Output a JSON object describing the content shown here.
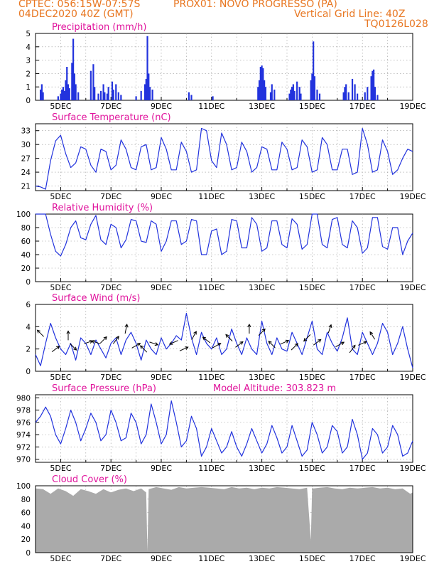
{
  "header": {
    "line1_left": "CPTEC:   056:15W-07:57S",
    "line1_right": "PROX01: NOVO PROGRESSO (PA)",
    "line2_left": "04DEC2020 40Z (GMT)",
    "line2_right": "Vertical Grid Line: 40Z",
    "line3_right": "TQ0126L028"
  },
  "colors": {
    "header": "#e87722",
    "title": "#e0139c",
    "series": "#2233dd",
    "cloud": "#aaaaaa"
  },
  "x_ticks": [
    "5DEC",
    "7DEC",
    "9DEC",
    "11DEC",
    "13DEC",
    "15DEC",
    "17DEC",
    "19DEC"
  ],
  "chart_data": [
    {
      "type": "bar",
      "title": "Precipitation (mm/h)",
      "ylim": [
        0,
        5
      ],
      "yticks": [
        0,
        1,
        2,
        3,
        4,
        5
      ],
      "points": [
        [
          0.2,
          0.8
        ],
        [
          0.25,
          1.2
        ],
        [
          0.3,
          0.6
        ],
        [
          0.9,
          0.3
        ],
        [
          1.0,
          0.5
        ],
        [
          1.05,
          0.8
        ],
        [
          1.1,
          1.0
        ],
        [
          1.15,
          0.7
        ],
        [
          1.2,
          1.5
        ],
        [
          1.25,
          2.5
        ],
        [
          1.3,
          1.2
        ],
        [
          1.35,
          0.9
        ],
        [
          1.45,
          2.8
        ],
        [
          1.5,
          4.6
        ],
        [
          1.55,
          2.0
        ],
        [
          1.6,
          1.2
        ],
        [
          1.7,
          0.6
        ],
        [
          2.2,
          2.2
        ],
        [
          2.3,
          2.7
        ],
        [
          2.35,
          1.0
        ],
        [
          2.5,
          0.5
        ],
        [
          2.6,
          0.7
        ],
        [
          2.7,
          1.2
        ],
        [
          2.75,
          0.6
        ],
        [
          2.85,
          0.5
        ],
        [
          2.9,
          1.0
        ],
        [
          3.05,
          1.4
        ],
        [
          3.1,
          0.8
        ],
        [
          3.2,
          1.2
        ],
        [
          3.3,
          0.6
        ],
        [
          3.4,
          0.4
        ],
        [
          4.0,
          0.3
        ],
        [
          4.2,
          0.7
        ],
        [
          4.35,
          1.2
        ],
        [
          4.4,
          1.6
        ],
        [
          4.45,
          4.8
        ],
        [
          4.5,
          2.0
        ],
        [
          4.55,
          1.0
        ],
        [
          4.65,
          0.8
        ],
        [
          6.1,
          0.6
        ],
        [
          6.2,
          0.4
        ],
        [
          7.05,
          0.3
        ],
        [
          8.85,
          1.0
        ],
        [
          8.9,
          1.5
        ],
        [
          8.95,
          2.5
        ],
        [
          9.0,
          2.6
        ],
        [
          9.05,
          2.4
        ],
        [
          9.1,
          1.5
        ],
        [
          9.15,
          1.0
        ],
        [
          9.35,
          0.6
        ],
        [
          9.4,
          1.2
        ],
        [
          9.5,
          0.8
        ],
        [
          10.1,
          0.5
        ],
        [
          10.15,
          0.8
        ],
        [
          10.2,
          1.0
        ],
        [
          10.25,
          1.2
        ],
        [
          10.3,
          0.7
        ],
        [
          10.4,
          1.4
        ],
        [
          10.5,
          1.0
        ],
        [
          10.55,
          0.5
        ],
        [
          10.95,
          1.5
        ],
        [
          11.0,
          2.0
        ],
        [
          11.05,
          4.4
        ],
        [
          11.1,
          1.8
        ],
        [
          11.2,
          0.8
        ],
        [
          11.3,
          0.5
        ],
        [
          12.25,
          0.6
        ],
        [
          12.3,
          1.0
        ],
        [
          12.35,
          1.2
        ],
        [
          12.45,
          0.6
        ],
        [
          12.6,
          1.6
        ],
        [
          12.7,
          1.2
        ],
        [
          12.8,
          0.5
        ],
        [
          13.1,
          0.6
        ],
        [
          13.2,
          1.0
        ],
        [
          13.35,
          1.8
        ],
        [
          13.4,
          2.2
        ],
        [
          13.45,
          2.3
        ],
        [
          13.5,
          1.0
        ],
        [
          13.6,
          0.4
        ]
      ]
    },
    {
      "type": "line",
      "title": "Surface Temperature (nC)",
      "ylim": [
        20.0,
        34.5
      ],
      "yticks": [
        21,
        24,
        27,
        30,
        33
      ],
      "x": [
        0,
        0.2,
        0.4,
        0.6,
        0.8,
        1.0,
        1.2,
        1.4,
        1.6,
        1.8,
        2.0,
        2.2,
        2.4,
        2.6,
        2.8,
        3.0,
        3.2,
        3.4,
        3.6,
        3.8,
        4.0,
        4.2,
        4.4,
        4.6,
        4.8,
        5.0,
        5.2,
        5.4,
        5.6,
        5.8,
        6.0,
        6.2,
        6.4,
        6.6,
        6.8,
        7.0,
        7.2,
        7.4,
        7.6,
        7.8,
        8.0,
        8.2,
        8.4,
        8.6,
        8.8,
        9.0,
        9.2,
        9.4,
        9.6,
        9.8,
        10.0,
        10.2,
        10.4,
        10.6,
        10.8,
        11.0,
        11.2,
        11.4,
        11.6,
        11.8,
        12.0,
        12.2,
        12.4,
        12.6,
        12.8,
        13.0,
        13.2,
        13.4,
        13.6,
        13.8,
        14.0,
        14.2,
        14.4,
        14.6,
        14.8,
        15.0
      ],
      "values": [
        21.0,
        20.8,
        20.3,
        26.5,
        30.8,
        32.0,
        28.0,
        25.0,
        26.0,
        29.5,
        29.0,
        25.5,
        24.0,
        29.0,
        28.5,
        24.5,
        25.5,
        31.0,
        29.0,
        25.0,
        24.5,
        29.5,
        30.0,
        24.5,
        25.0,
        31.5,
        29.0,
        24.5,
        24.5,
        30.5,
        28.5,
        24.0,
        24.5,
        33.5,
        33.0,
        26.5,
        25.0,
        32.5,
        30.0,
        24.5,
        25.0,
        30.5,
        28.5,
        24.0,
        25.0,
        29.5,
        29.0,
        24.5,
        24.5,
        30.5,
        29.0,
        24.5,
        25.0,
        31.0,
        29.5,
        24.0,
        24.5,
        31.5,
        30.0,
        24.5,
        24.5,
        29.0,
        29.0,
        23.5,
        24.0,
        33.5,
        30.0,
        24.0,
        24.5,
        31.0,
        28.5,
        23.5,
        24.5,
        27.0,
        29.0,
        28.5
      ]
    },
    {
      "type": "line",
      "title": "Relative Humidity (%)",
      "ylim": [
        0,
        100
      ],
      "yticks": [
        0,
        20,
        40,
        60,
        80,
        100
      ],
      "x": [
        0,
        0.2,
        0.4,
        0.6,
        0.8,
        1.0,
        1.2,
        1.4,
        1.6,
        1.8,
        2.0,
        2.2,
        2.4,
        2.6,
        2.8,
        3.0,
        3.2,
        3.4,
        3.6,
        3.8,
        4.0,
        4.2,
        4.4,
        4.6,
        4.8,
        5.0,
        5.2,
        5.4,
        5.6,
        5.8,
        6.0,
        6.2,
        6.4,
        6.6,
        6.8,
        7.0,
        7.2,
        7.4,
        7.6,
        7.8,
        8.0,
        8.2,
        8.4,
        8.6,
        8.8,
        9.0,
        9.2,
        9.4,
        9.6,
        9.8,
        10.0,
        10.2,
        10.4,
        10.6,
        10.8,
        11.0,
        11.2,
        11.4,
        11.6,
        11.8,
        12.0,
        12.2,
        12.4,
        12.6,
        12.8,
        13.0,
        13.2,
        13.4,
        13.6,
        13.8,
        14.0,
        14.2,
        14.4,
        14.6,
        14.8,
        15.0
      ],
      "values": [
        100,
        100,
        100,
        70,
        45,
        38,
        55,
        80,
        90,
        65,
        62,
        85,
        98,
        62,
        55,
        85,
        80,
        50,
        62,
        92,
        90,
        60,
        58,
        90,
        85,
        45,
        60,
        90,
        90,
        55,
        60,
        92,
        90,
        40,
        40,
        75,
        78,
        40,
        45,
        92,
        90,
        50,
        50,
        95,
        85,
        45,
        50,
        90,
        90,
        55,
        50,
        93,
        85,
        48,
        55,
        100,
        100,
        55,
        50,
        92,
        95,
        55,
        50,
        90,
        80,
        42,
        50,
        95,
        95,
        52,
        48,
        80,
        80,
        40,
        60,
        72
      ]
    },
    {
      "type": "line",
      "title": "Surface Wind (m/s)",
      "ylim": [
        0,
        6
      ],
      "yticks": [
        0,
        2,
        4,
        6
      ],
      "x": [
        0,
        0.2,
        0.4,
        0.6,
        0.8,
        1.0,
        1.2,
        1.4,
        1.6,
        1.8,
        2.0,
        2.2,
        2.4,
        2.6,
        2.8,
        3.0,
        3.2,
        3.4,
        3.6,
        3.8,
        4.0,
        4.2,
        4.4,
        4.6,
        4.8,
        5.0,
        5.2,
        5.4,
        5.6,
        5.8,
        6.0,
        6.2,
        6.4,
        6.6,
        6.8,
        7.0,
        7.2,
        7.4,
        7.6,
        7.8,
        8.0,
        8.2,
        8.4,
        8.6,
        8.8,
        9.0,
        9.2,
        9.4,
        9.6,
        9.8,
        10.0,
        10.2,
        10.4,
        10.6,
        10.8,
        11.0,
        11.2,
        11.4,
        11.6,
        11.8,
        12.0,
        12.2,
        12.4,
        12.6,
        12.8,
        13.0,
        13.2,
        13.4,
        13.6,
        13.8,
        14.0,
        14.2,
        14.4,
        14.6,
        14.8,
        15.0
      ],
      "values": [
        1.5,
        0.5,
        2.5,
        4.3,
        3.0,
        2.0,
        1.5,
        2.5,
        1.0,
        3.0,
        2.5,
        1.5,
        2.8,
        2.0,
        1.2,
        2.5,
        3.0,
        1.5,
        2.8,
        3.5,
        2.5,
        1.0,
        2.8,
        2.0,
        1.5,
        3.0,
        2.0,
        2.5,
        3.2,
        2.8,
        5.2,
        3.0,
        1.5,
        3.5,
        2.5,
        2.0,
        3.0,
        1.5,
        2.0,
        3.8,
        2.5,
        1.5,
        3.0,
        2.0,
        1.5,
        4.5,
        2.5,
        1.5,
        3.0,
        2.0,
        1.8,
        3.5,
        2.5,
        1.5,
        3.0,
        4.5,
        2.0,
        1.5,
        3.5,
        2.5,
        1.8,
        3.0,
        4.8,
        2.0,
        1.5,
        3.5,
        2.5,
        1.5,
        2.5,
        4.3,
        3.5,
        1.5,
        2.5,
        4.0,
        2.0,
        0.3
      ],
      "arrows": [
        [
          0.2,
          3.4,
          -0.7,
          0.7
        ],
        [
          0.8,
          2.0,
          0.8,
          0.6
        ],
        [
          1.3,
          3.2,
          0.0,
          1.0
        ],
        [
          1.5,
          2.2,
          0.7,
          -0.7
        ],
        [
          2.1,
          2.6,
          0.9,
          0.3
        ],
        [
          2.4,
          2.6,
          -0.9,
          0.3
        ],
        [
          2.7,
          2.8,
          0.7,
          0.7
        ],
        [
          3.2,
          2.8,
          0.6,
          0.8
        ],
        [
          3.6,
          3.8,
          0.2,
          1.0
        ],
        [
          4.0,
          2.3,
          0.9,
          0.5
        ],
        [
          4.3,
          2.0,
          -0.7,
          0.7
        ],
        [
          4.7,
          2.5,
          0.9,
          -0.3
        ],
        [
          5.5,
          2.6,
          -0.9,
          -0.4
        ],
        [
          5.9,
          2.0,
          0.9,
          0.4
        ],
        [
          6.3,
          3.2,
          0.5,
          0.9
        ],
        [
          6.8,
          2.8,
          -0.8,
          0.6
        ],
        [
          7.2,
          2.3,
          0.9,
          0.5
        ],
        [
          7.7,
          3.0,
          -0.7,
          0.7
        ],
        [
          8.1,
          2.4,
          0.8,
          0.6
        ],
        [
          8.5,
          3.8,
          0.0,
          1.0
        ],
        [
          9.0,
          3.5,
          0.7,
          0.7
        ],
        [
          9.4,
          2.4,
          -0.7,
          0.7
        ],
        [
          9.9,
          2.6,
          0.9,
          0.4
        ],
        [
          10.3,
          2.2,
          0.7,
          0.7
        ],
        [
          10.8,
          3.0,
          -0.7,
          -0.7
        ],
        [
          11.2,
          2.6,
          0.8,
          0.6
        ],
        [
          11.7,
          3.8,
          0.3,
          0.9
        ],
        [
          12.1,
          2.4,
          0.9,
          0.5
        ],
        [
          12.6,
          2.0,
          0.6,
          0.8
        ],
        [
          13.0,
          2.5,
          0.9,
          0.4
        ],
        [
          13.4,
          3.2,
          -0.5,
          0.8
        ]
      ]
    },
    {
      "type": "line",
      "title": "Surface Pressure (hPa)",
      "annotation": "Model Altitude: 303.823 m",
      "ylim": [
        969.5,
        980.5
      ],
      "yticks": [
        970,
        972,
        974,
        976,
        978,
        980
      ],
      "x": [
        0,
        0.2,
        0.4,
        0.6,
        0.8,
        1.0,
        1.2,
        1.4,
        1.6,
        1.8,
        2.0,
        2.2,
        2.4,
        2.6,
        2.8,
        3.0,
        3.2,
        3.4,
        3.6,
        3.8,
        4.0,
        4.2,
        4.4,
        4.6,
        4.8,
        5.0,
        5.2,
        5.4,
        5.6,
        5.8,
        6.0,
        6.2,
        6.4,
        6.6,
        6.8,
        7.0,
        7.2,
        7.4,
        7.6,
        7.8,
        8.0,
        8.2,
        8.4,
        8.6,
        8.8,
        9.0,
        9.2,
        9.4,
        9.6,
        9.8,
        10.0,
        10.2,
        10.4,
        10.6,
        10.8,
        11.0,
        11.2,
        11.4,
        11.6,
        11.8,
        12.0,
        12.2,
        12.4,
        12.6,
        12.8,
        13.0,
        13.2,
        13.4,
        13.6,
        13.8,
        14.0,
        14.2,
        14.4,
        14.6,
        14.8,
        15.0
      ],
      "values": [
        976,
        977,
        978.5,
        977,
        974,
        972.5,
        975,
        978,
        976,
        973,
        975,
        977.5,
        976,
        973,
        974,
        978,
        976,
        973,
        973.5,
        977.5,
        976,
        972.5,
        974,
        979,
        976,
        972.5,
        974,
        979.5,
        976,
        972,
        973,
        977,
        975,
        970.5,
        972,
        975,
        973,
        971,
        972,
        974.5,
        972,
        970.5,
        972.5,
        975,
        973,
        971,
        972.5,
        975.5,
        973.5,
        971,
        972,
        975.5,
        973,
        970.5,
        971.5,
        976,
        974,
        971,
        972,
        975.5,
        974.5,
        971,
        972,
        976.5,
        974,
        970,
        971,
        975,
        974,
        971,
        972,
        975.5,
        974,
        970.5,
        971,
        973
      ]
    },
    {
      "type": "area",
      "title": "Cloud Cover (%)",
      "ylim": [
        0,
        100
      ],
      "yticks": [
        0,
        20,
        40,
        60,
        80,
        100
      ],
      "x": [
        0,
        0.3,
        0.6,
        0.9,
        1.2,
        1.5,
        1.8,
        2.1,
        2.4,
        2.7,
        3.0,
        3.3,
        3.6,
        3.9,
        4.2,
        4.4,
        4.45,
        4.5,
        4.8,
        5.1,
        5.4,
        5.7,
        6.0,
        6.3,
        6.6,
        6.9,
        7.2,
        7.5,
        7.8,
        8.1,
        8.4,
        8.7,
        9.0,
        9.3,
        9.6,
        9.9,
        10.2,
        10.5,
        10.8,
        10.95,
        11.0,
        11.05,
        11.3,
        11.6,
        11.9,
        12.2,
        12.5,
        12.8,
        13.1,
        13.4,
        13.7,
        14.0,
        14.3,
        14.6,
        14.9,
        15.0
      ],
      "values": [
        96,
        95,
        88,
        96,
        92,
        85,
        95,
        92,
        88,
        95,
        90,
        94,
        96,
        92,
        96,
        90,
        2,
        95,
        98,
        96,
        94,
        98,
        96,
        97,
        98,
        97,
        96,
        95,
        98,
        96,
        97,
        95,
        97,
        96,
        98,
        97,
        96,
        95,
        97,
        18,
        97,
        96,
        97,
        98,
        96,
        95,
        97,
        96,
        97,
        98,
        96,
        97,
        95,
        96,
        88,
        90
      ]
    }
  ]
}
